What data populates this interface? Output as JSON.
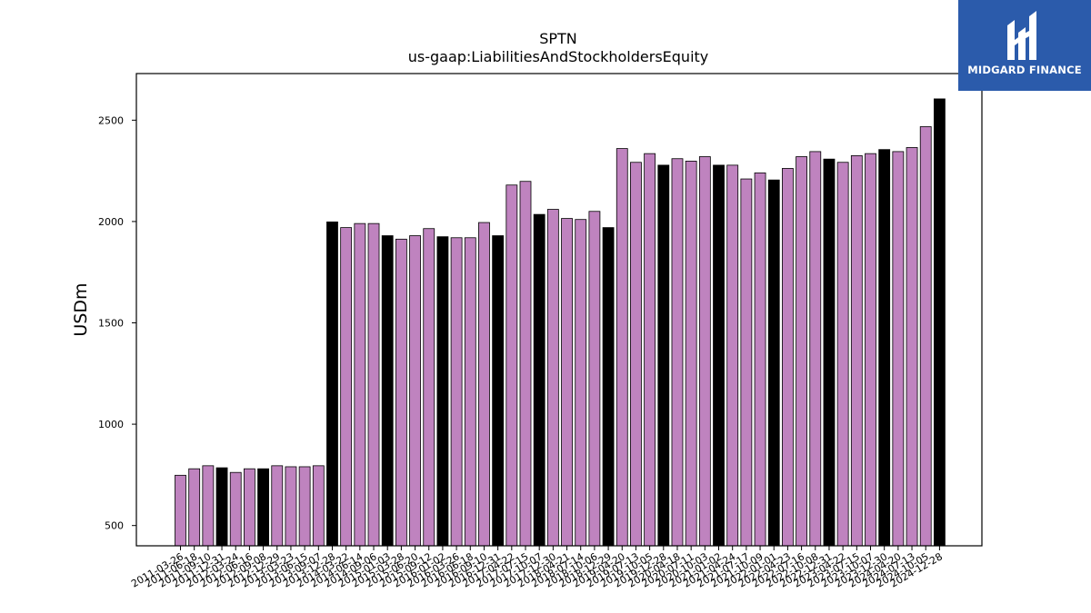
{
  "brand": {
    "name": "MIDGARD FINANCE",
    "bg_color": "#2b5bab"
  },
  "chart_data": {
    "type": "bar",
    "title": "SPTN",
    "subtitle": "us-gaap:LiabilitiesAndStockholdersEquity",
    "ylabel": "USDm",
    "xlabel": "",
    "ylim": [
      400,
      2730
    ],
    "yticks": [
      500,
      1000,
      1500,
      2000,
      2500
    ],
    "grid": false,
    "colors": {
      "quarter": "#bf83bf",
      "annual": "#000000"
    },
    "categories": [
      "2011-03-26",
      "2011-06-18",
      "2011-09-10",
      "2011-12-31",
      "2012-03-24",
      "2012-06-16",
      "2012-09-08",
      "2012-12-29",
      "2013-03-23",
      "2013-06-15",
      "2013-09-07",
      "2013-12-28",
      "2014-03-22",
      "2014-06-14",
      "2014-09-06",
      "2015-01-03",
      "2015-03-28",
      "2015-06-20",
      "2015-09-12",
      "2016-01-02",
      "2016-03-26",
      "2016-06-18",
      "2016-09-10",
      "2016-12-31",
      "2017-04-22",
      "2017-07-15",
      "2017-10-07",
      "2017-12-30",
      "2018-04-21",
      "2018-07-14",
      "2018-10-06",
      "2018-12-29",
      "2019-04-20",
      "2019-07-13",
      "2019-10-05",
      "2019-12-28",
      "2020-04-18",
      "2020-07-11",
      "2020-10-03",
      "2021-01-02",
      "2021-04-24",
      "2021-07-17",
      "2021-10-09",
      "2022-01-01",
      "2022-04-23",
      "2022-07-16",
      "2022-10-08",
      "2022-12-31",
      "2023-04-22",
      "2023-07-15",
      "2023-10-07",
      "2023-12-30",
      "2024-04-20",
      "2024-07-13",
      "2024-10-05",
      "2024-12-28"
    ],
    "tick_labels": [
      "2011-03-26",
      "2011-06-18",
      "2011-09-10",
      "2011-12-31",
      "2012-03-24",
      "2012-06-16",
      "2012-09-08",
      "2012-12-29",
      "2013-03-23",
      "2013-06-15",
      "2013-09-07",
      "2013-12-28",
      "2014-03-22",
      "2014-06-14",
      "2014-09-06",
      "2015-01-03",
      "2015-03-28",
      "2015-06-20",
      "2015-09-12",
      "2016-01-02",
      "2016-03-26",
      "2016-06-18",
      "2016-09-10",
      "2016-12-31",
      "2017-04-22",
      "2017-07-15",
      "2017-10-07",
      "2017-12-30",
      "2018-04-21",
      "2018-07-14",
      "2018-10-06",
      "2018-12-29",
      "2019-04-20",
      "2019-07-13",
      "2019-10-05",
      "2019-12-28",
      "2020-04-18",
      "2020-07-11",
      "2020-10-03",
      "2021-01-02",
      "2021-04-24",
      "2021-07-17",
      "2021-10-09",
      "2022-01-01",
      "2022-04-23",
      "2022-07-16",
      "2022-10-08",
      "2022-12-31",
      "2023-04-22",
      "2023-07-15",
      "2023-10-07",
      "2023-12-30",
      "2024-04-20",
      "2024-07-13",
      "2024-10-05",
      "2024-12-28"
    ],
    "values": [
      748,
      780,
      795,
      785,
      762,
      780,
      780,
      795,
      790,
      790,
      795,
      1998,
      1970,
      1990,
      1990,
      1930,
      1913,
      1930,
      1965,
      1925,
      1920,
      1920,
      1995,
      1930,
      2180,
      2198,
      2035,
      2060,
      2015,
      2010,
      2050,
      1970,
      2360,
      2292,
      2335,
      2278,
      2310,
      2298,
      2320,
      2278,
      2278,
      2210,
      2240,
      2205,
      2262,
      2320,
      2345,
      2308,
      2292,
      2325,
      2335,
      2355,
      2345,
      2365,
      2468,
      2605
    ],
    "annual": [
      false,
      false,
      false,
      true,
      false,
      false,
      true,
      false,
      false,
      false,
      false,
      true,
      false,
      false,
      false,
      true,
      false,
      false,
      false,
      true,
      false,
      false,
      false,
      true,
      false,
      false,
      true,
      false,
      false,
      false,
      false,
      true,
      false,
      false,
      false,
      true,
      false,
      false,
      false,
      true,
      false,
      false,
      false,
      true,
      false,
      false,
      false,
      true,
      false,
      false,
      false,
      true,
      false,
      false,
      false,
      true
    ]
  }
}
